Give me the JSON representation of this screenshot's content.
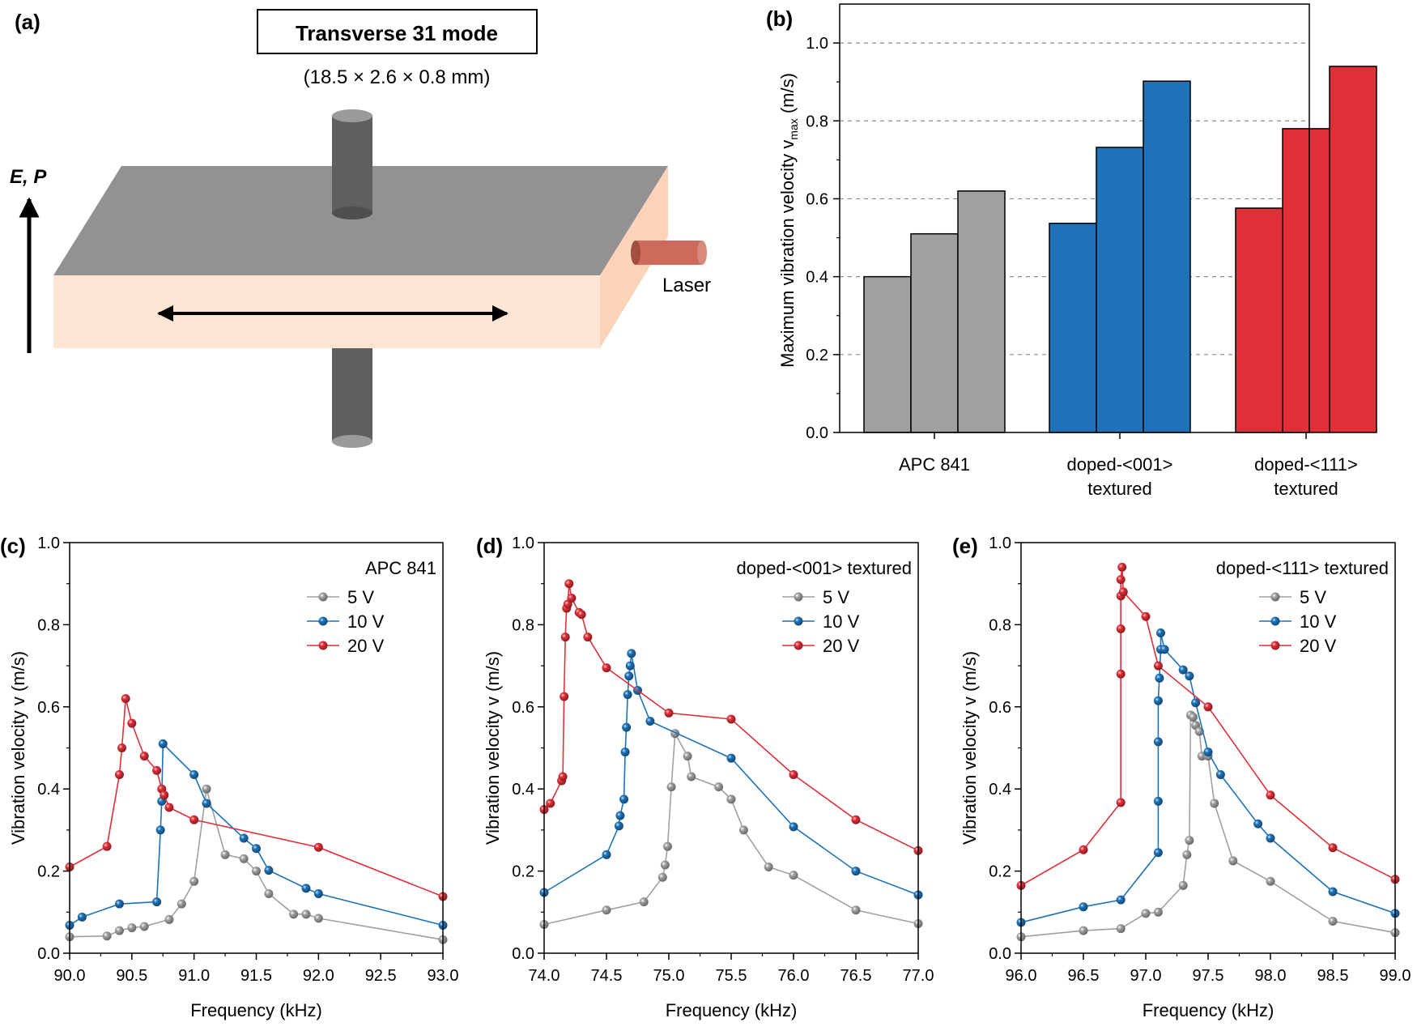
{
  "panel_labels": {
    "a": "(a)",
    "b": "(b)",
    "c": "(c)",
    "d": "(d)",
    "e": "(e)"
  },
  "schematic": {
    "title": "Transverse 31 mode",
    "dimensions": "(18.5 × 2.6 × 0.8 mm)",
    "field_label": "E, P",
    "laser_label": "Laser",
    "colors": {
      "top": "#939192",
      "front": "#fde5d4",
      "side": "#fbd3b8",
      "electrode": "#5f5f5f",
      "laser": "#cd6a5c"
    }
  },
  "chart_data": [
    {
      "id": "b",
      "type": "bar",
      "title": "",
      "xlabel": "",
      "ylabel_main": "Maximum vibration velocity v",
      "ylabel_sub": "max",
      "ylabel_unit": " (m/s)",
      "ylim": [
        0,
        1.1
      ],
      "yticks": [
        0.0,
        0.2,
        0.4,
        0.6,
        0.8,
        1.0
      ],
      "ytick_labels": [
        "0.0",
        "0.2",
        "0.4",
        "0.6",
        "0.8",
        "1.0"
      ],
      "grid": true,
      "groups": [
        {
          "name": "APC 841",
          "label_lines": [
            "APC 841"
          ],
          "color": "#a0a0a0",
          "values": [
            0.4,
            0.51,
            0.62
          ]
        },
        {
          "name": "doped-<001> textured",
          "label_lines": [
            "doped-<001>",
            "textured"
          ],
          "color": "#1e73b8",
          "values": [
            0.537,
            0.732,
            0.902
          ]
        },
        {
          "name": "doped-<111> textured",
          "label_lines": [
            "doped-<111>",
            "textured"
          ],
          "color": "#df3039",
          "values": [
            0.576,
            0.78,
            0.94
          ]
        }
      ]
    },
    {
      "id": "c",
      "type": "line",
      "legend_title": "APC 841",
      "xlabel": "Frequency (kHz)",
      "ylabel": "Vibration velocity v (m/s)",
      "xlim": [
        90.0,
        93.0
      ],
      "ylim": [
        0.0,
        1.0
      ],
      "xticks": [
        90.0,
        90.5,
        91.0,
        91.5,
        92.0,
        92.5,
        93.0
      ],
      "xtick_labels": [
        "90.0",
        "90.5",
        "91.0",
        "91.5",
        "92.0",
        "92.5",
        "93.0"
      ],
      "yticks": [
        0.0,
        0.2,
        0.4,
        0.6,
        0.8,
        1.0
      ],
      "ytick_labels": [
        "0.0",
        "0.2",
        "0.4",
        "0.6",
        "0.8",
        "1.0"
      ],
      "series": [
        {
          "name": "5 V",
          "color": "#a0a0a0",
          "x": [
            90.0,
            90.3,
            90.4,
            90.5,
            90.6,
            90.8,
            90.9,
            91.0,
            91.1,
            91.25,
            91.4,
            91.5,
            91.6,
            91.8,
            91.9,
            92.0,
            93.0
          ],
          "y": [
            0.04,
            0.042,
            0.055,
            0.062,
            0.065,
            0.082,
            0.12,
            0.175,
            0.4,
            0.24,
            0.23,
            0.2,
            0.145,
            0.095,
            0.095,
            0.085,
            0.033
          ]
        },
        {
          "name": "10 V",
          "color": "#1e73b8",
          "x": [
            90.0,
            90.1,
            90.4,
            90.7,
            90.73,
            90.74,
            90.75,
            91.0,
            91.1,
            91.4,
            91.5,
            91.6,
            91.9,
            92.0,
            93.0
          ],
          "y": [
            0.068,
            0.088,
            0.12,
            0.125,
            0.3,
            0.37,
            0.51,
            0.435,
            0.365,
            0.28,
            0.255,
            0.202,
            0.158,
            0.145,
            0.068
          ]
        },
        {
          "name": "20 V",
          "color": "#df3039",
          "x": [
            90.0,
            90.3,
            90.4,
            90.42,
            90.45,
            90.5,
            90.6,
            90.7,
            90.74,
            90.76,
            90.8,
            91.0,
            92.0,
            93.0
          ],
          "y": [
            0.21,
            0.26,
            0.435,
            0.5,
            0.62,
            0.56,
            0.48,
            0.445,
            0.4,
            0.385,
            0.355,
            0.325,
            0.258,
            0.138
          ]
        }
      ]
    },
    {
      "id": "d",
      "type": "line",
      "legend_title": "doped-<001> textured",
      "xlabel": "Frequency (kHz)",
      "ylabel": "Vibration velocity v (m/s)",
      "xlim": [
        74.0,
        77.0
      ],
      "ylim": [
        0.0,
        1.0
      ],
      "xticks": [
        74.0,
        74.5,
        75.0,
        75.5,
        76.0,
        76.5,
        77.0
      ],
      "xtick_labels": [
        "74.0",
        "74.5",
        "75.0",
        "75.5",
        "76.0",
        "76.5",
        "77.0"
      ],
      "yticks": [
        0.0,
        0.2,
        0.4,
        0.6,
        0.8,
        1.0
      ],
      "ytick_labels": [
        "0.0",
        "0.2",
        "0.4",
        "0.6",
        "0.8",
        "1.0"
      ],
      "series": [
        {
          "name": "5 V",
          "color": "#a0a0a0",
          "x": [
            74.0,
            74.5,
            74.8,
            74.95,
            74.97,
            74.99,
            75.02,
            75.05,
            75.15,
            75.18,
            75.4,
            75.5,
            75.6,
            75.8,
            76.0,
            76.5,
            77.0
          ],
          "y": [
            0.07,
            0.105,
            0.125,
            0.185,
            0.215,
            0.26,
            0.405,
            0.535,
            0.48,
            0.43,
            0.405,
            0.375,
            0.3,
            0.21,
            0.19,
            0.105,
            0.072
          ]
        },
        {
          "name": "10 V",
          "color": "#1e73b8",
          "x": [
            74.0,
            74.5,
            74.6,
            74.61,
            74.64,
            74.65,
            74.66,
            74.67,
            74.68,
            74.69,
            74.7,
            74.75,
            74.85,
            75.5,
            76.0,
            76.5,
            77.0
          ],
          "y": [
            0.148,
            0.24,
            0.31,
            0.335,
            0.375,
            0.49,
            0.55,
            0.63,
            0.675,
            0.7,
            0.73,
            0.64,
            0.565,
            0.475,
            0.308,
            0.2,
            0.142
          ]
        },
        {
          "name": "20 V",
          "color": "#df3039",
          "x": [
            74.0,
            74.05,
            74.14,
            74.15,
            74.16,
            74.17,
            74.18,
            74.19,
            74.2,
            74.22,
            74.28,
            74.3,
            74.35,
            74.5,
            75.0,
            75.5,
            76.0,
            76.5,
            77.0
          ],
          "y": [
            0.35,
            0.365,
            0.42,
            0.43,
            0.625,
            0.77,
            0.84,
            0.85,
            0.9,
            0.865,
            0.83,
            0.825,
            0.77,
            0.695,
            0.585,
            0.57,
            0.435,
            0.325,
            0.25
          ]
        }
      ]
    },
    {
      "id": "e",
      "type": "line",
      "legend_title": "doped-<111> textured",
      "xlabel": "Frequency (kHz)",
      "ylabel": "Vibration velocity v (m/s)",
      "xlim": [
        96.0,
        99.0
      ],
      "ylim": [
        0.0,
        1.0
      ],
      "xticks": [
        96.0,
        96.5,
        97.0,
        97.5,
        98.0,
        98.5,
        99.0
      ],
      "xtick_labels": [
        "96.0",
        "96.5",
        "97.0",
        "97.5",
        "98.0",
        "98.5",
        "99.0"
      ],
      "yticks": [
        0.0,
        0.2,
        0.4,
        0.6,
        0.8,
        1.0
      ],
      "ytick_labels": [
        "0.0",
        "0.2",
        "0.4",
        "0.6",
        "0.8",
        "1.0"
      ],
      "series": [
        {
          "name": "5 V",
          "color": "#a0a0a0",
          "x": [
            96.0,
            96.5,
            96.8,
            97.0,
            97.1,
            97.3,
            97.33,
            97.35,
            97.36,
            97.38,
            97.4,
            97.43,
            97.45,
            97.5,
            97.55,
            97.7,
            98.0,
            98.5,
            99.0
          ],
          "y": [
            0.04,
            0.055,
            0.06,
            0.097,
            0.1,
            0.165,
            0.24,
            0.275,
            0.58,
            0.575,
            0.555,
            0.54,
            0.48,
            0.48,
            0.365,
            0.225,
            0.175,
            0.078,
            0.05
          ]
        },
        {
          "name": "10 V",
          "color": "#1e73b8",
          "x": [
            96.0,
            96.5,
            96.8,
            97.1,
            97.1,
            97.1,
            97.1,
            97.11,
            97.12,
            97.12,
            97.15,
            97.3,
            97.35,
            97.4,
            97.5,
            97.6,
            97.9,
            98.0,
            98.5,
            99.0
          ],
          "y": [
            0.075,
            0.113,
            0.13,
            0.245,
            0.37,
            0.515,
            0.615,
            0.67,
            0.74,
            0.78,
            0.74,
            0.69,
            0.675,
            0.61,
            0.49,
            0.435,
            0.315,
            0.28,
            0.15,
            0.097
          ]
        },
        {
          "name": "20 V",
          "color": "#df3039",
          "x": [
            96.0,
            96.5,
            96.8,
            96.8,
            96.8,
            96.8,
            96.8,
            96.81,
            96.82,
            97.0,
            97.1,
            97.5,
            98.0,
            98.5,
            99.0
          ],
          "y": [
            0.165,
            0.252,
            0.367,
            0.68,
            0.79,
            0.87,
            0.91,
            0.94,
            0.88,
            0.82,
            0.7,
            0.6,
            0.385,
            0.257,
            0.18
          ]
        }
      ]
    }
  ]
}
